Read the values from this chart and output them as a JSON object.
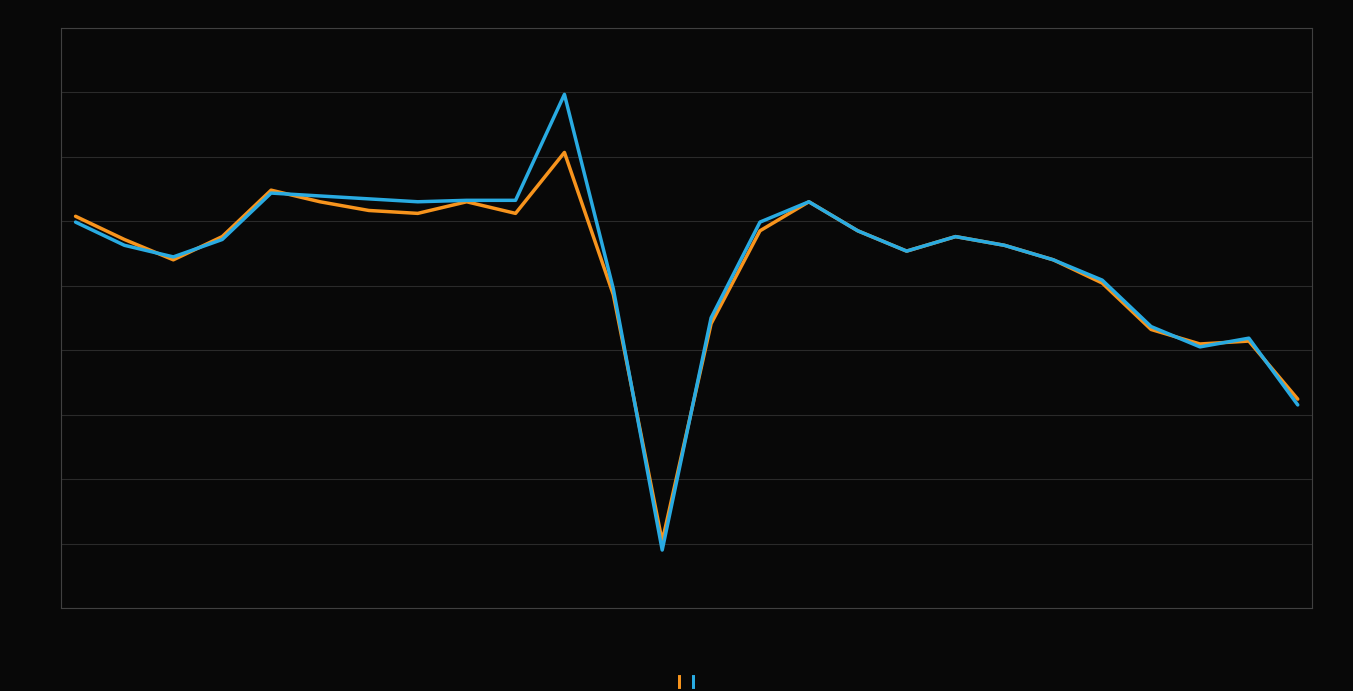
{
  "blue_series": [
    2.8,
    2.0,
    1.6,
    2.2,
    3.8,
    3.7,
    3.6,
    3.5,
    3.55,
    3.55,
    7.2,
    0.5,
    -8.5,
    -0.5,
    2.8,
    3.5,
    2.5,
    1.8,
    2.3,
    2.0,
    1.5,
    0.8,
    -0.8,
    -1.5,
    -1.2,
    -3.5
  ],
  "orange_series": [
    3.0,
    2.2,
    1.5,
    2.3,
    3.9,
    3.5,
    3.2,
    3.1,
    3.5,
    3.1,
    5.2,
    0.3,
    -8.2,
    -0.7,
    2.5,
    3.5,
    2.5,
    1.8,
    2.3,
    2.0,
    1.5,
    0.7,
    -0.9,
    -1.4,
    -1.3,
    -3.3
  ],
  "blue_color": "#29ABE2",
  "orange_color": "#F7941D",
  "background_color": "#080808",
  "grid_color": "#2a2a2a",
  "line_width": 2.5,
  "ylim": [
    -10.5,
    9.5
  ],
  "n_gridlines": 9
}
